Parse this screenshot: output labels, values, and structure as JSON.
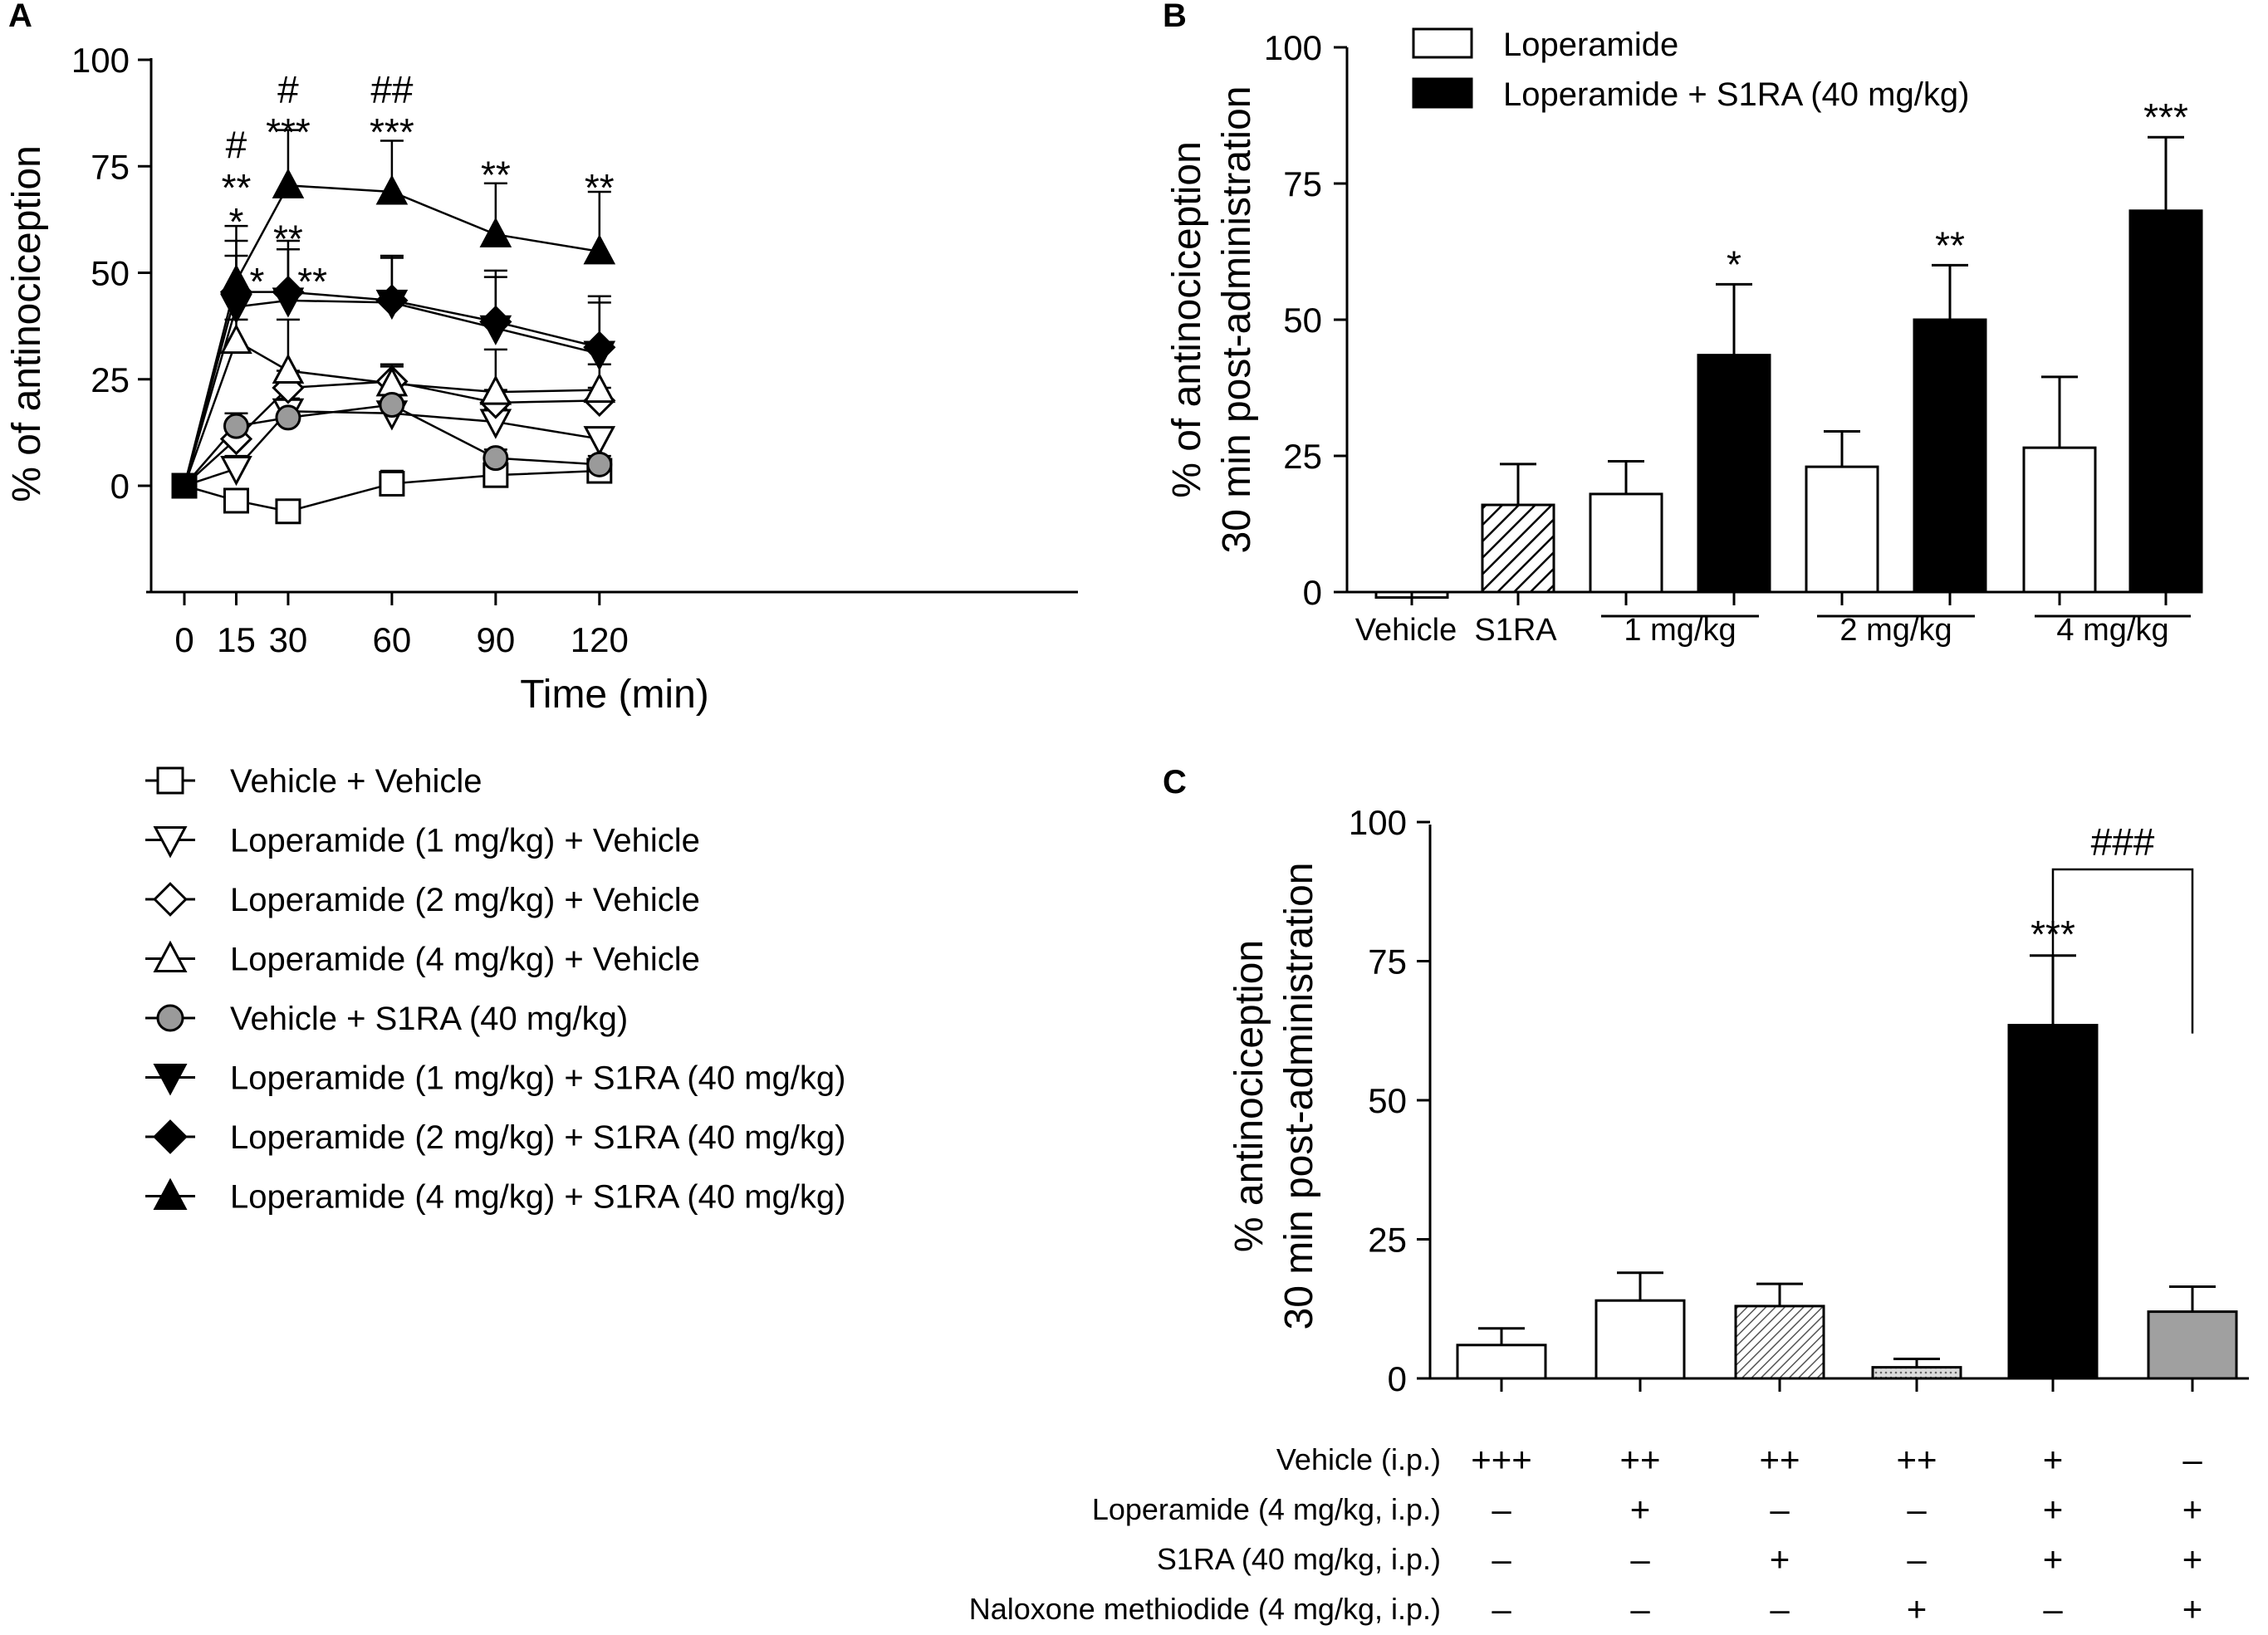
{
  "chart_data": [
    {
      "panel": "A",
      "type": "line",
      "xlabel": "Time (min)",
      "ylabel": "% of antinociception",
      "x": [
        0,
        15,
        30,
        60,
        90,
        120
      ],
      "x_ticks": [
        "0",
        "15",
        "30",
        "60",
        "90",
        "120"
      ],
      "y_ticks": [
        "0",
        "25",
        "50",
        "75",
        "100"
      ],
      "ylim": [
        -25,
        100
      ],
      "series": [
        {
          "name": "Vehicle + Vehicle",
          "marker": "square",
          "fill": "open",
          "values": [
            0,
            -3.5,
            -6,
            0.5,
            2.5,
            3.5
          ],
          "err": [
            0,
            0,
            2,
            3,
            2,
            2
          ]
        },
        {
          "name": "Loperamide (1 mg/kg) + Vehicle",
          "marker": "tri-down",
          "fill": "open",
          "values": [
            0,
            4,
            17.5,
            17,
            15,
            11
          ],
          "err": [
            0,
            3,
            3,
            3,
            3,
            2
          ]
        },
        {
          "name": "Loperamide (2 mg/kg) + Vehicle",
          "marker": "diamond",
          "fill": "open",
          "values": [
            0,
            11,
            23,
            24.5,
            19.5,
            20
          ],
          "err": [
            0,
            3,
            4,
            4,
            3,
            3
          ]
        },
        {
          "name": "Loperamide (4 mg/kg) + Vehicle",
          "marker": "tri-up",
          "fill": "open",
          "values": [
            0,
            34,
            27,
            24,
            22,
            22.5
          ],
          "err": [
            0,
            5,
            12,
            4,
            10,
            6
          ]
        },
        {
          "name": "Vehicle + S1RA (40 mg/kg)",
          "marker": "circle",
          "fill": "gray",
          "values": [
            0,
            14,
            16,
            19,
            6.5,
            5
          ],
          "err": [
            0,
            3,
            3,
            3,
            2,
            2
          ]
        },
        {
          "name": "Loperamide (1 mg/kg) + S1RA (40 mg/kg)",
          "marker": "tri-down",
          "fill": "black",
          "values": [
            0,
            42,
            43.5,
            43,
            37,
            31
          ],
          "err": [
            0,
            12,
            12,
            11,
            12,
            12
          ]
        },
        {
          "name": "Loperamide (2 mg/kg) + S1RA (40 mg/kg)",
          "marker": "diamond",
          "fill": "black",
          "values": [
            0,
            45.5,
            45.5,
            43.5,
            38.5,
            32.5
          ],
          "err": [
            0,
            12,
            12,
            10,
            12,
            12
          ]
        },
        {
          "name": "Loperamide (4 mg/kg) + S1RA (40 mg/kg)",
          "marker": "tri-up",
          "fill": "black",
          "values": [
            0,
            48,
            70.5,
            69,
            59,
            55
          ],
          "err": [
            0,
            13,
            13,
            12,
            12,
            14
          ]
        }
      ],
      "annotations": [
        {
          "x": 15,
          "y": 80,
          "text": "#"
        },
        {
          "x": 15,
          "y": 70,
          "text": "**"
        },
        {
          "x": 15,
          "y": 62,
          "text": "*"
        },
        {
          "x": 30,
          "y": 93,
          "text": "#"
        },
        {
          "x": 30,
          "y": 83,
          "text": "***"
        },
        {
          "x": 60,
          "y": 93,
          "text": "##"
        },
        {
          "x": 60,
          "y": 83,
          "text": "***"
        },
        {
          "x": 90,
          "y": 73,
          "text": "**"
        },
        {
          "x": 120,
          "y": 70,
          "text": "**"
        },
        {
          "x": 30,
          "y": 58,
          "text": "**"
        },
        {
          "x": 21,
          "y": 48,
          "text": "*"
        },
        {
          "x": 37,
          "y": 48,
          "text": "**"
        }
      ]
    },
    {
      "panel": "B",
      "type": "bar",
      "ylabel_lines": [
        "% of antinociception",
        "30 min post-administration"
      ],
      "y_ticks": [
        "0",
        "25",
        "50",
        "75",
        "100"
      ],
      "ylim": [
        0,
        100
      ],
      "legend": [
        {
          "label": "Loperamide",
          "fill": "#ffffff"
        },
        {
          "label": "Loperamide + S1RA (40 mg/kg)",
          "fill": "#000000"
        }
      ],
      "bars": [
        {
          "label": "Vehicle",
          "value": -1,
          "err": 0,
          "fill": "white",
          "star": ""
        },
        {
          "label": "S1RA",
          "value": 16,
          "err": 7.5,
          "fill": "hatch",
          "star": ""
        },
        {
          "label": "Loperamide 1 mg/kg",
          "value": 18,
          "err": 6,
          "fill": "white",
          "star": ""
        },
        {
          "label": "Loperamide + S1RA 1 mg/kg",
          "value": 43.5,
          "err": 13,
          "fill": "black",
          "star": "*"
        },
        {
          "label": "Loperamide 2 mg/kg",
          "value": 23,
          "err": 6.5,
          "fill": "white",
          "star": ""
        },
        {
          "label": "Loperamide + S1RA 2 mg/kg",
          "value": 50,
          "err": 10,
          "fill": "black",
          "star": "**"
        },
        {
          "label": "Loperamide 4 mg/kg",
          "value": 26.5,
          "err": 13,
          "fill": "white",
          "star": ""
        },
        {
          "label": "Loperamide + S1RA 4 mg/kg",
          "value": 70,
          "err": 13.5,
          "fill": "black",
          "star": "***"
        }
      ],
      "category_labels": [
        "Vehicle",
        "S1RA",
        "1 mg/kg",
        "2 mg/kg",
        "4 mg/kg"
      ]
    },
    {
      "panel": "C",
      "type": "bar",
      "ylabel_lines": [
        "% antinociception",
        "30 min post-administration"
      ],
      "y_ticks": [
        "0",
        "25",
        "50",
        "75",
        "100"
      ],
      "ylim": [
        0,
        100
      ],
      "bars": [
        {
          "value": 6,
          "err": 3,
          "fill": "white",
          "star": ""
        },
        {
          "value": 14,
          "err": 5,
          "fill": "white",
          "star": ""
        },
        {
          "value": 13,
          "err": 4,
          "fill": "hatch",
          "star": ""
        },
        {
          "value": 2,
          "err": 1.5,
          "fill": "dots",
          "star": ""
        },
        {
          "value": 63.5,
          "err": 12.5,
          "fill": "black",
          "star": "***"
        },
        {
          "value": 12,
          "err": 4.5,
          "fill": "gray",
          "star": ""
        }
      ],
      "comparison": {
        "from": 4,
        "to": 5,
        "text": "###"
      },
      "treatment_table": [
        {
          "label": "Vehicle (i.p.)",
          "signs": [
            "+++",
            "++",
            "++",
            "++",
            "+",
            "–"
          ]
        },
        {
          "label": "Loperamide (4 mg/kg, i.p.)",
          "signs": [
            "–",
            "+",
            "–",
            "–",
            "+",
            "+"
          ]
        },
        {
          "label": "S1RA (40 mg/kg, i.p.)",
          "signs": [
            "–",
            "–",
            "+",
            "–",
            "+",
            "+"
          ]
        },
        {
          "label": "Naloxone methiodide (4 mg/kg, i.p.)",
          "signs": [
            "–",
            "–",
            "–",
            "+",
            "–",
            "+"
          ]
        }
      ]
    }
  ],
  "panel_letters": [
    "A",
    "B",
    "C"
  ]
}
